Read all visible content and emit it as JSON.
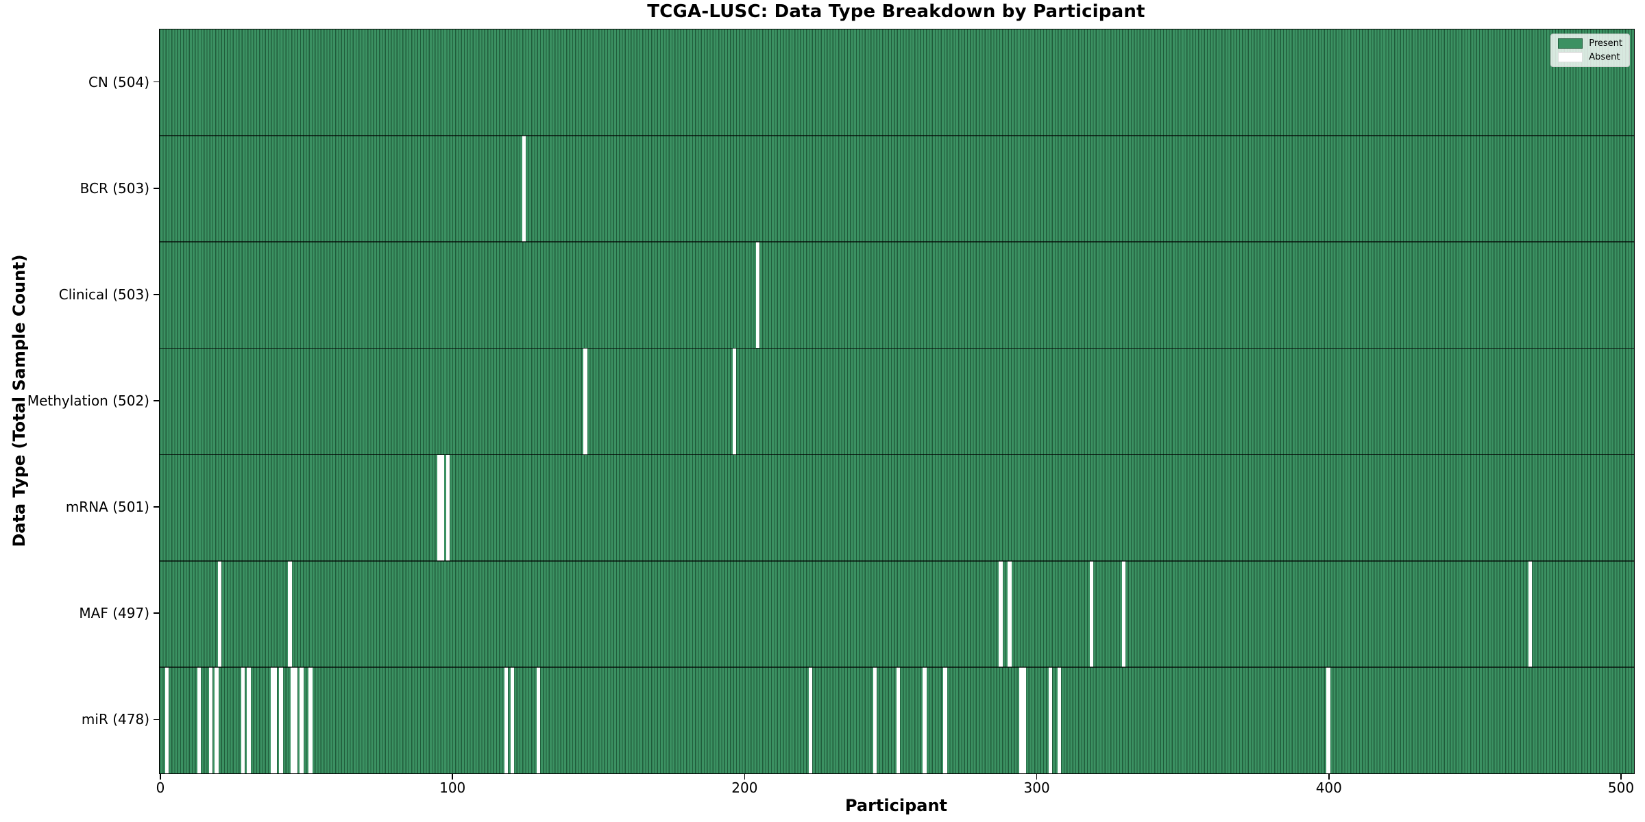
{
  "chart_data": {
    "type": "heatmap",
    "title": "TCGA-LUSC: Data Type Breakdown by Participant",
    "xlabel": "Participant",
    "ylabel": "Data Type (Total Sample Count)",
    "x_ticks": [
      0,
      100,
      200,
      300,
      400,
      500
    ],
    "x_range": [
      0,
      504
    ],
    "total_participants": 504,
    "grid": false,
    "legend": {
      "present": "Present",
      "absent": "Absent",
      "position": "upper right"
    },
    "colors": {
      "present_fill": "#3b9162",
      "bar_edge": "#205c3b",
      "absent_fill": "#ffffff",
      "row_divider": "#000000"
    },
    "rows": [
      {
        "name": "CN",
        "label": "CN (504)",
        "present_count": 504,
        "absent_participants": []
      },
      {
        "name": "BCR",
        "label": "BCR (503)",
        "present_count": 503,
        "absent_participants": [
          124
        ]
      },
      {
        "name": "Clinical",
        "label": "Clinical (503)",
        "present_count": 503,
        "absent_participants": [
          204
        ]
      },
      {
        "name": "Methylation",
        "label": "Methylation (502)",
        "present_count": 502,
        "absent_participants": [
          145,
          196
        ]
      },
      {
        "name": "mRNA",
        "label": "mRNA (501)",
        "present_count": 501,
        "absent_participants": [
          95,
          96,
          98
        ]
      },
      {
        "name": "MAF",
        "label": "MAF (497)",
        "present_count": 497,
        "absent_participants": [
          20,
          44,
          287,
          290,
          318,
          329,
          468
        ]
      },
      {
        "name": "miR",
        "label": "miR (478)",
        "present_count": 478,
        "absent_participants": [
          2,
          13,
          17,
          19,
          28,
          30,
          38,
          39,
          41,
          45,
          46,
          48,
          51,
          118,
          120,
          129,
          222,
          244,
          252,
          261,
          268,
          294,
          295,
          304,
          307,
          399
        ]
      }
    ]
  }
}
